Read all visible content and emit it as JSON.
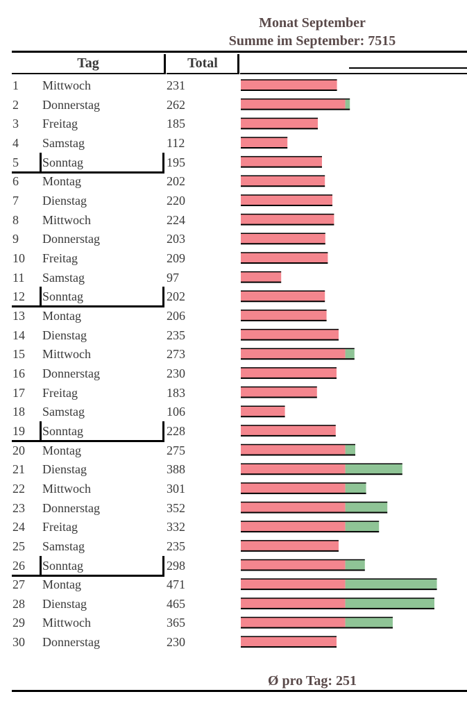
{
  "header": {
    "title": "Monat September",
    "subtitle": "Summe im September: 7515",
    "col_day": "Tag",
    "col_total": "Total"
  },
  "footer": {
    "average": "Ø pro Tag: 251"
  },
  "colors": {
    "base": "#f4868e",
    "excess": "#8fc496",
    "outline": "#000000"
  },
  "chart_data": {
    "type": "bar",
    "orientation": "horizontal",
    "threshold": 251,
    "categories": [
      "1",
      "2",
      "3",
      "4",
      "5",
      "6",
      "7",
      "8",
      "9",
      "10",
      "11",
      "12",
      "13",
      "14",
      "15",
      "16",
      "17",
      "18",
      "19",
      "20",
      "21",
      "22",
      "23",
      "24",
      "25",
      "26",
      "27",
      "28",
      "29",
      "30"
    ],
    "weekdays": [
      "Mittwoch",
      "Donnerstag",
      "Freitag",
      "Samstag",
      "Sonntag",
      "Montag",
      "Dienstag",
      "Mittwoch",
      "Donnerstag",
      "Freitag",
      "Samstag",
      "Sonntag",
      "Montag",
      "Dienstag",
      "Mittwoch",
      "Donnerstag",
      "Freitag",
      "Samstag",
      "Sonntag",
      "Montag",
      "Dienstag",
      "Mittwoch",
      "Donnerstag",
      "Freitag",
      "Samstag",
      "Sonntag",
      "Montag",
      "Dienstag",
      "Mittwoch",
      "Donnerstag"
    ],
    "values": [
      231,
      262,
      185,
      112,
      195,
      202,
      220,
      224,
      203,
      209,
      97,
      202,
      206,
      235,
      273,
      230,
      183,
      106,
      228,
      275,
      388,
      301,
      352,
      332,
      235,
      298,
      471,
      465,
      365,
      230
    ]
  }
}
